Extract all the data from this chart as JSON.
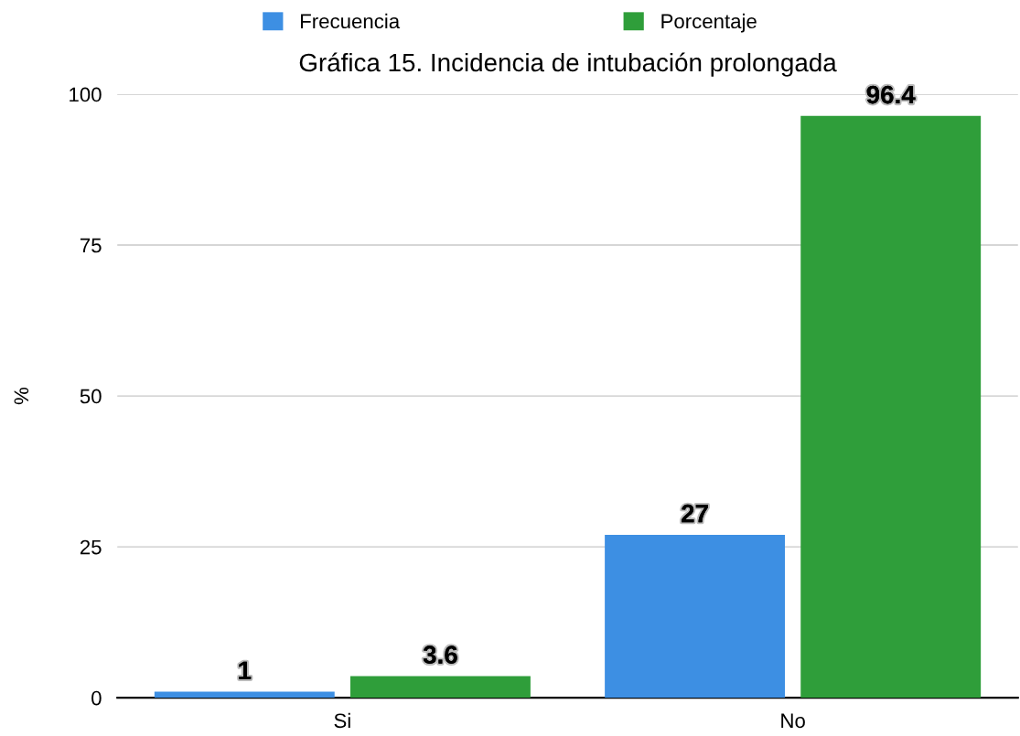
{
  "chart_data": {
    "type": "bar",
    "title": "Gráfica 15. Incidencia de intubación prolongada",
    "ylabel": "%",
    "categories": [
      "Si",
      "No"
    ],
    "series": [
      {
        "name": "Frecuencia",
        "color": "#3d8fe3",
        "values": [
          1,
          27
        ]
      },
      {
        "name": "Porcentaje",
        "color": "#2f9e3a",
        "values": [
          3.6,
          96.4
        ]
      }
    ],
    "ylim": [
      0,
      100
    ],
    "yticks": [
      0,
      25,
      50,
      75,
      100
    ],
    "grid": "y",
    "legend": "top",
    "data_labels": true
  }
}
